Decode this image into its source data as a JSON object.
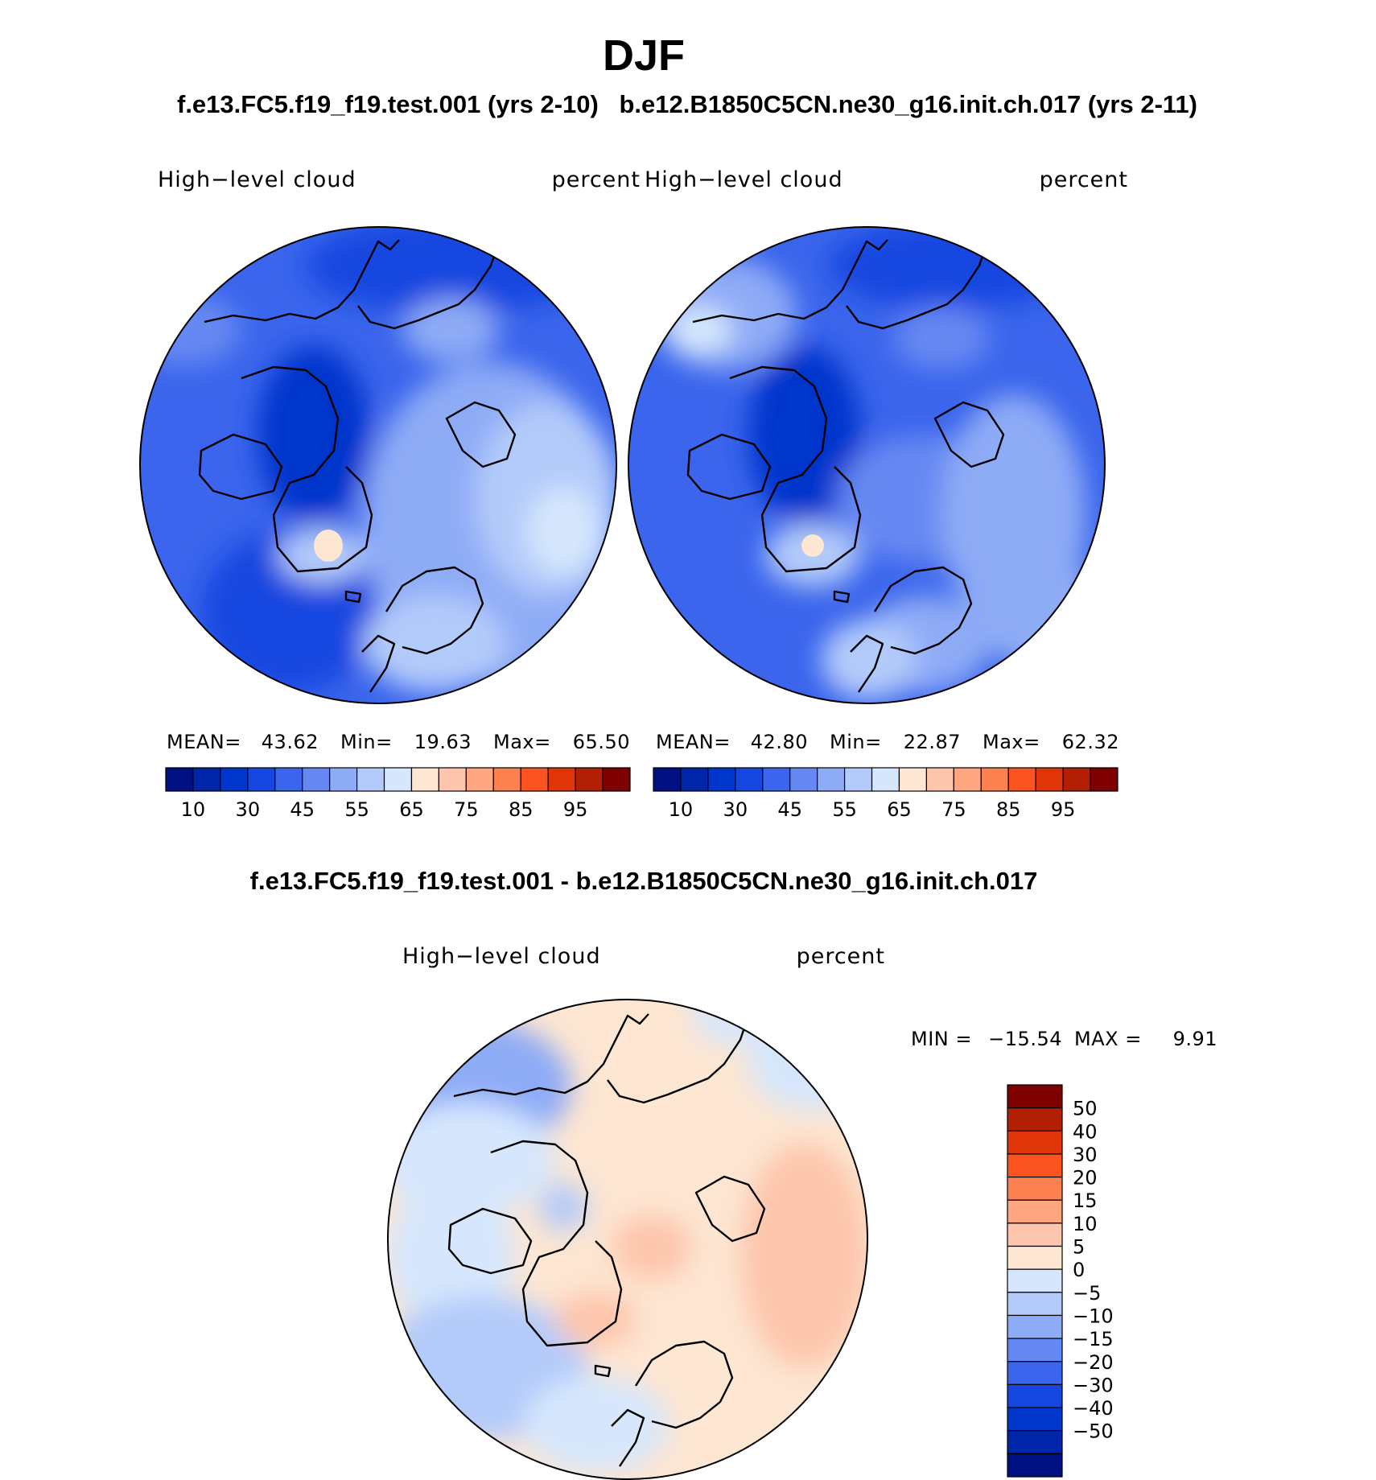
{
  "chart_data": {
    "type": "heatmap",
    "title": "DJF",
    "panels": [
      {
        "id": "model",
        "case": "f.e13.FC5.f19_f19.test.001 (yrs 2-10)",
        "variable": "High−level cloud",
        "units": "percent",
        "projection": "polar stereographic, north pole",
        "stats": {
          "mean_label": "MEAN=",
          "mean": "43.62",
          "min_label": "Min=",
          "min": "19.63",
          "max_label": "Max=",
          "max": "65.50"
        },
        "colorbar": {
          "colors": [
            "#000f82",
            "#0025a8",
            "#0036cc",
            "#1547e0",
            "#3a65ec",
            "#6688f2",
            "#8eabf6",
            "#b3cbfa",
            "#d6e7fd",
            "#fde6d2",
            "#fdc6ac",
            "#fda680",
            "#fd8050",
            "#fb5420",
            "#e03409",
            "#b21f04",
            "#7f0000"
          ],
          "tick_labels": [
            "10",
            "30",
            "45",
            "55",
            "65",
            "75",
            "85",
            "95"
          ]
        }
      },
      {
        "id": "obs",
        "case": "b.e12.B1850C5CN.ne30_g16.init.ch.017 (yrs 2-11)",
        "variable": "High−level cloud",
        "units": "percent",
        "projection": "polar stereographic, north pole",
        "stats": {
          "mean_label": "MEAN=",
          "mean": "42.80",
          "min_label": "Min=",
          "min": "22.87",
          "max_label": "Max=",
          "max": "62.32"
        },
        "colorbar": {
          "colors": [
            "#000f82",
            "#0025a8",
            "#0036cc",
            "#1547e0",
            "#3a65ec",
            "#6688f2",
            "#8eabf6",
            "#b3cbfa",
            "#d6e7fd",
            "#fde6d2",
            "#fdc6ac",
            "#fda680",
            "#fd8050",
            "#fb5420",
            "#e03409",
            "#b21f04",
            "#7f0000"
          ],
          "tick_labels": [
            "10",
            "30",
            "45",
            "55",
            "65",
            "75",
            "85",
            "95"
          ]
        }
      },
      {
        "id": "diff",
        "case": "f.e13.FC5.f19_f19.test.001 - b.e12.B1850C5CN.ne30_g16.init.ch.017",
        "variable": "High−level cloud",
        "units": "percent",
        "projection": "polar stereographic, north pole",
        "stats": {
          "min_label": "MIN =",
          "min": "−15.54",
          "max_label": "MAX =",
          "max": "9.91"
        },
        "colorbar": {
          "colors": [
            "#7f0000",
            "#b21f04",
            "#e03409",
            "#fb5420",
            "#fd8050",
            "#fda680",
            "#fdc6ac",
            "#fde6d2",
            "#d6e7fd",
            "#b3cbfa",
            "#8eabf6",
            "#6688f2",
            "#3a65ec",
            "#1547e0",
            "#0036cc",
            "#0025a8",
            "#000f82"
          ],
          "tick_labels": [
            "50",
            "40",
            "30",
            "20",
            "15",
            "10",
            "5",
            "0",
            "−5",
            "−10",
            "−15",
            "−20",
            "−30",
            "−40",
            "−50"
          ]
        }
      }
    ]
  }
}
